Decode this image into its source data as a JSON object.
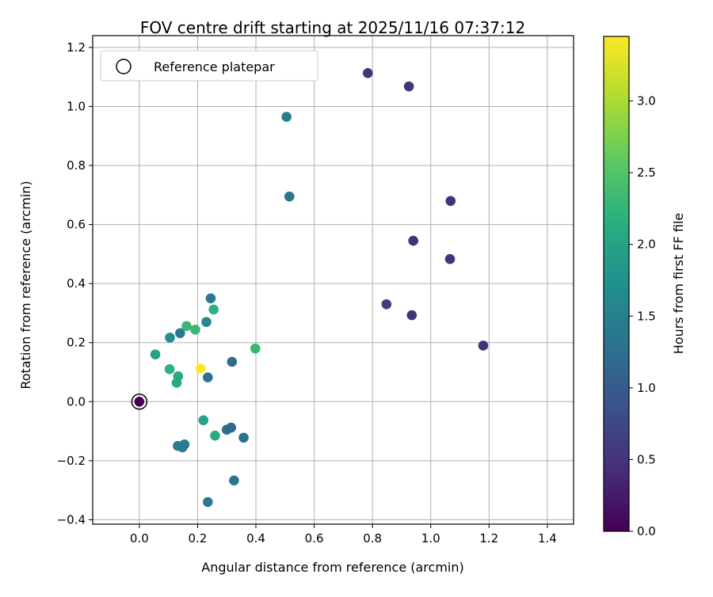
{
  "chart_data": {
    "type": "scatter",
    "title": "FOV centre drift starting at 2025/11/16 07:37:12",
    "xlabel": "Angular distance from reference (arcmin)",
    "ylabel": "Rotation from reference (arcmin)",
    "colorbar_label": "Hours from first FF file",
    "xlim": [
      -0.16,
      1.49
    ],
    "ylim": [
      -0.415,
      1.24
    ],
    "clim": [
      0,
      3.45
    ],
    "x_ticks": [
      0.0,
      0.2,
      0.4,
      0.6,
      0.8,
      1.0,
      1.2,
      1.4
    ],
    "x_tick_labels": [
      "0.0",
      "0.2",
      "0.4",
      "0.6",
      "0.8",
      "1.0",
      "1.2",
      "1.4"
    ],
    "y_ticks": [
      -0.4,
      -0.2,
      0.0,
      0.2,
      0.4,
      0.6,
      0.8,
      1.0,
      1.2
    ],
    "y_tick_labels": [
      "−0.4",
      "−0.2",
      "0.0",
      "0.2",
      "0.4",
      "0.6",
      "0.8",
      "1.0",
      "1.2"
    ],
    "colorbar_ticks": [
      0.0,
      0.5,
      1.0,
      1.5,
      2.0,
      2.5,
      3.0
    ],
    "colorbar_tick_labels": [
      "0.0",
      "0.5",
      "1.0",
      "1.5",
      "2.0",
      "2.5",
      "3.0"
    ],
    "grid": true,
    "colormap": "viridis",
    "legend": {
      "placement": "top-left",
      "entries": [
        "Reference platepar"
      ]
    },
    "reference_point": {
      "x": 0.0,
      "y": 0.0
    },
    "points": [
      {
        "x": 0.0,
        "y": 0.0,
        "hours": 0.0
      },
      {
        "x": 0.784,
        "y": 1.113,
        "hours": 0.5
      },
      {
        "x": 0.925,
        "y": 1.068,
        "hours": 0.5
      },
      {
        "x": 1.068,
        "y": 0.68,
        "hours": 0.5
      },
      {
        "x": 0.94,
        "y": 0.545,
        "hours": 0.5
      },
      {
        "x": 1.066,
        "y": 0.483,
        "hours": 0.5
      },
      {
        "x": 0.848,
        "y": 0.33,
        "hours": 0.6
      },
      {
        "x": 0.935,
        "y": 0.293,
        "hours": 0.5
      },
      {
        "x": 1.18,
        "y": 0.19,
        "hours": 0.5
      },
      {
        "x": 0.505,
        "y": 0.965,
        "hours": 1.45
      },
      {
        "x": 0.515,
        "y": 0.695,
        "hours": 1.35
      },
      {
        "x": 0.245,
        "y": 0.35,
        "hours": 1.4
      },
      {
        "x": 0.23,
        "y": 0.27,
        "hours": 1.6
      },
      {
        "x": 0.14,
        "y": 0.232,
        "hours": 1.4
      },
      {
        "x": 0.105,
        "y": 0.217,
        "hours": 1.7
      },
      {
        "x": 0.318,
        "y": 0.135,
        "hours": 1.25
      },
      {
        "x": 0.235,
        "y": 0.082,
        "hours": 1.3
      },
      {
        "x": 0.255,
        "y": 0.312,
        "hours": 2.2
      },
      {
        "x": 0.162,
        "y": 0.256,
        "hours": 2.3
      },
      {
        "x": 0.192,
        "y": 0.244,
        "hours": 2.3
      },
      {
        "x": 0.055,
        "y": 0.16,
        "hours": 2.0
      },
      {
        "x": 0.398,
        "y": 0.18,
        "hours": 2.3
      },
      {
        "x": 0.104,
        "y": 0.11,
        "hours": 2.2
      },
      {
        "x": 0.133,
        "y": 0.086,
        "hours": 2.1
      },
      {
        "x": 0.128,
        "y": 0.064,
        "hours": 2.1
      },
      {
        "x": 0.21,
        "y": 0.112,
        "hours": 3.45
      },
      {
        "x": 0.22,
        "y": -0.063,
        "hours": 2.0
      },
      {
        "x": 0.26,
        "y": -0.115,
        "hours": 2.1
      },
      {
        "x": 0.3,
        "y": -0.095,
        "hours": 1.25
      },
      {
        "x": 0.315,
        "y": -0.088,
        "hours": 1.2
      },
      {
        "x": 0.358,
        "y": -0.122,
        "hours": 1.3
      },
      {
        "x": 0.132,
        "y": -0.15,
        "hours": 1.45
      },
      {
        "x": 0.148,
        "y": -0.155,
        "hours": 1.45
      },
      {
        "x": 0.155,
        "y": -0.145,
        "hours": 1.4
      },
      {
        "x": 0.325,
        "y": -0.267,
        "hours": 1.35
      },
      {
        "x": 0.235,
        "y": -0.34,
        "hours": 1.4
      }
    ]
  }
}
